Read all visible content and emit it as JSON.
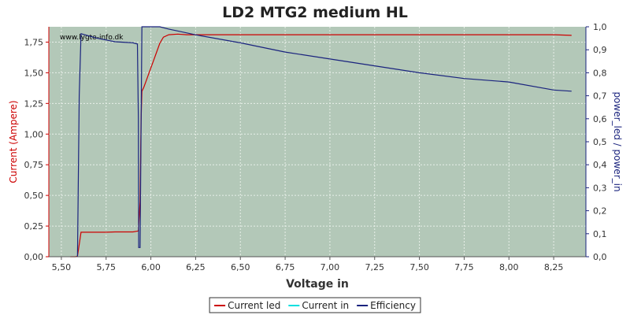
{
  "chart_data": {
    "type": "line",
    "title": "LD2 MTG2 medium HL",
    "watermark": "www.lygte-info.dk",
    "xlabel": "Voltage in",
    "ylabel_left": "Current (Ampere)",
    "ylabel_right": "power_led / power_in",
    "xlim": [
      5.43,
      8.43
    ],
    "ylim_left": [
      0,
      1.875
    ],
    "ylim_right": [
      0,
      1.0
    ],
    "x_ticks": [
      5.5,
      5.75,
      6.0,
      6.25,
      6.5,
      6.75,
      7.0,
      7.25,
      7.5,
      7.75,
      8.0,
      8.25
    ],
    "x_tick_labels": [
      "5,50",
      "5,75",
      "6,00",
      "6,25",
      "6,50",
      "6,75",
      "7,00",
      "7,25",
      "7,50",
      "7,75",
      "8,00",
      "8,25"
    ],
    "y_left_ticks": [
      0,
      0.25,
      0.5,
      0.75,
      1.0,
      1.25,
      1.5,
      1.75
    ],
    "y_left_tick_labels": [
      "0,00",
      "0,25",
      "0,50",
      "0,75",
      "1,00",
      "1,25",
      "1,50",
      "1,75"
    ],
    "y_right_ticks": [
      0,
      0.1,
      0.2,
      0.3,
      0.4,
      0.5,
      0.6,
      0.7,
      0.8,
      0.9,
      1.0
    ],
    "y_right_tick_labels": [
      "0,0",
      "0,1",
      "0,2",
      "0,3",
      "0,4",
      "0,5",
      "0,6",
      "0,7",
      "0,8",
      "0,9",
      "1,0"
    ],
    "grid": true,
    "legend_position": "bottom-center",
    "series": [
      {
        "name": "Current led",
        "axis": "left",
        "color": "#cc0000",
        "x": [
          5.55,
          5.58,
          5.59,
          5.6,
          5.61,
          5.65,
          5.7,
          5.75,
          5.8,
          5.85,
          5.9,
          5.93,
          5.94,
          5.945,
          5.95,
          5.96,
          5.97,
          5.99,
          6.01,
          6.03,
          6.05,
          6.07,
          6.1,
          6.15,
          6.2,
          6.3,
          6.4,
          6.5,
          6.75,
          7.0,
          7.25,
          7.5,
          7.75,
          8.0,
          8.25,
          8.35
        ],
        "y": [
          0.0,
          0.0,
          0.005,
          0.1,
          0.2,
          0.2,
          0.2,
          0.2,
          0.202,
          0.202,
          0.202,
          0.21,
          0.45,
          1.1,
          1.35,
          1.38,
          1.42,
          1.5,
          1.58,
          1.66,
          1.74,
          1.79,
          1.81,
          1.815,
          1.81,
          1.81,
          1.81,
          1.81,
          1.81,
          1.81,
          1.81,
          1.81,
          1.81,
          1.81,
          1.81,
          1.805
        ]
      },
      {
        "name": "Current in",
        "axis": "left",
        "color": "#00e0e0",
        "x": [],
        "y": []
      },
      {
        "name": "Efficiency",
        "axis": "right",
        "color": "#1a237e",
        "x": [
          5.59,
          5.6,
          5.61,
          5.7,
          5.8,
          5.9,
          5.925,
          5.93,
          5.932,
          5.94,
          5.95,
          6.0,
          6.05,
          6.1,
          6.25,
          6.5,
          6.75,
          7.0,
          7.25,
          7.5,
          7.75,
          8.0,
          8.25,
          8.35
        ],
        "y": [
          0.0,
          0.7,
          0.97,
          0.95,
          0.935,
          0.93,
          0.925,
          0.6,
          0.04,
          0.04,
          1.0,
          1.0,
          1.0,
          0.99,
          0.965,
          0.93,
          0.89,
          0.86,
          0.83,
          0.8,
          0.775,
          0.76,
          0.725,
          0.72
        ]
      }
    ]
  }
}
